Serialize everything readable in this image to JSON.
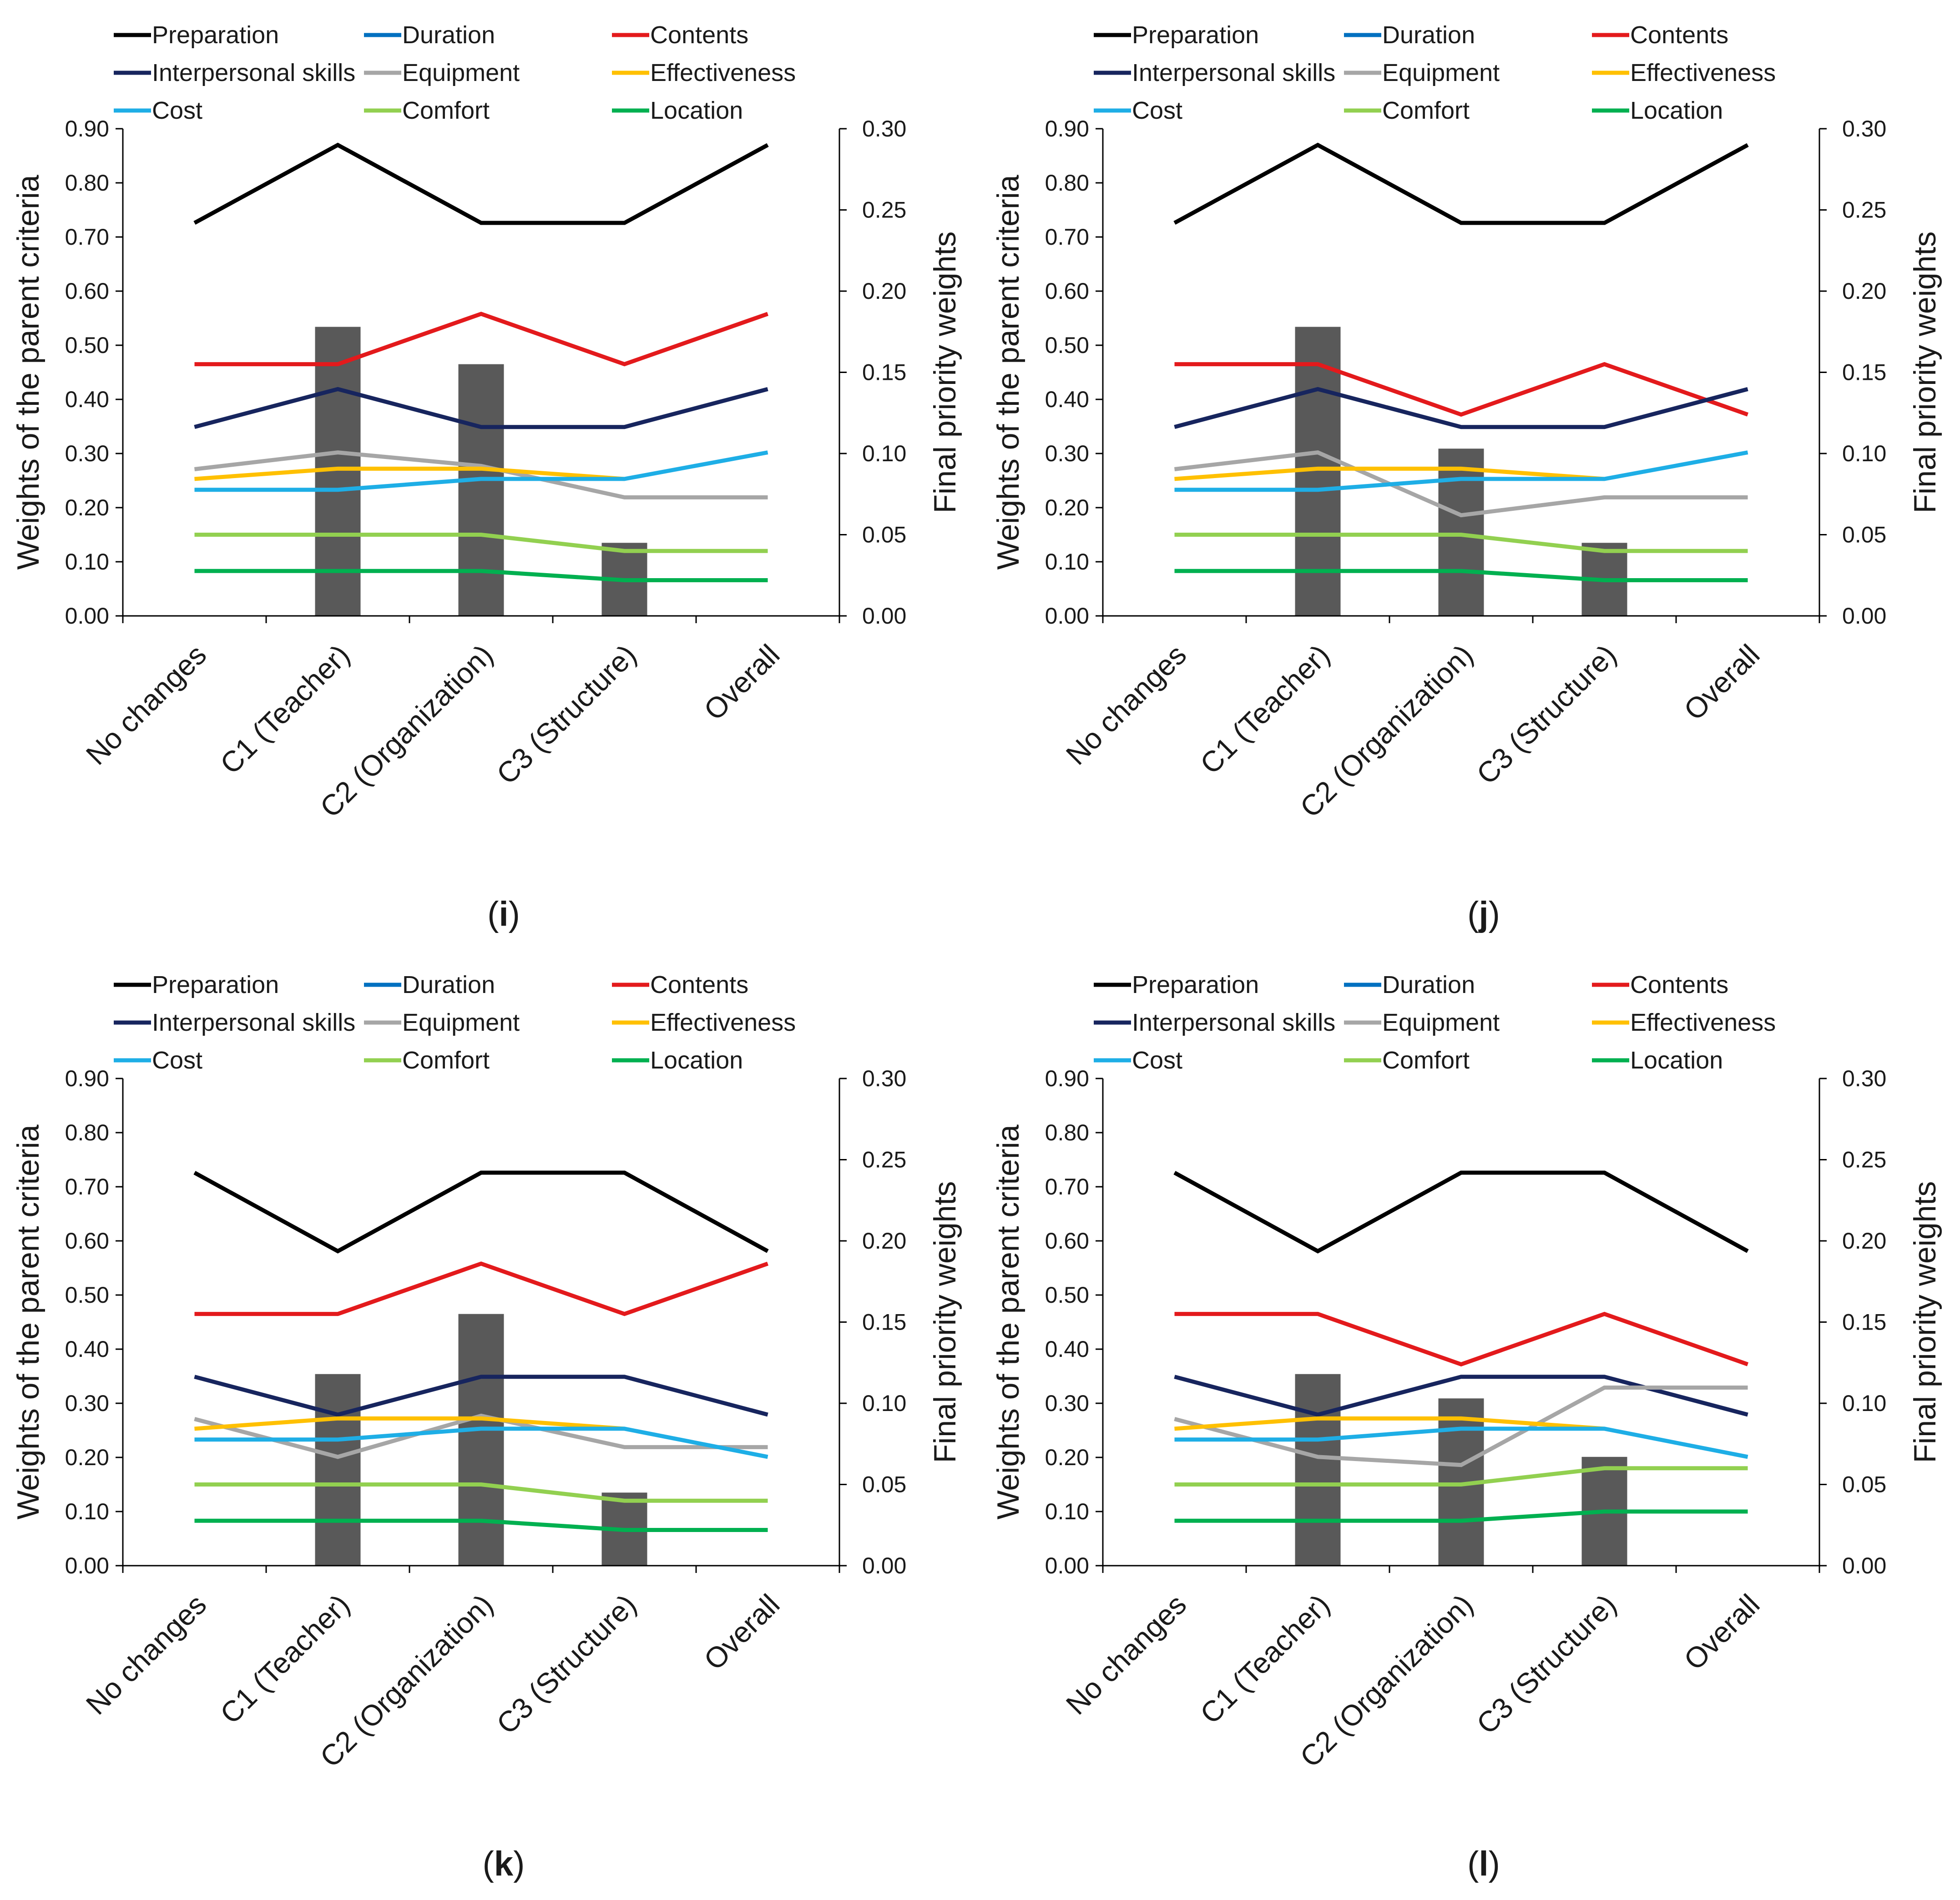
{
  "chart_data": [
    {
      "type": "line",
      "panel_label": "i",
      "categories": [
        "No changes",
        "C1 (Teacher)",
        "C2 (Organization)",
        "C3 (Structure)",
        "Overall"
      ],
      "ylabel": "Weights of the parent criteria",
      "y2label": "Final priority weights",
      "ylim": [
        0,
        0.9
      ],
      "y2lim": [
        0,
        0.3
      ],
      "yticks": [
        "0.00",
        "0.10",
        "0.20",
        "0.30",
        "0.40",
        "0.50",
        "0.60",
        "0.70",
        "0.80",
        "0.90"
      ],
      "y2ticks": [
        "0.00",
        "0.05",
        "0.10",
        "0.15",
        "0.20",
        "0.25",
        "0.30"
      ],
      "legend_position": "top",
      "bars": {
        "axis": "secondary",
        "categories": [
          "C1 (Teacher)",
          "C2 (Organization)",
          "C3 (Structure)"
        ],
        "values": [
          0.178,
          0.155,
          0.045
        ],
        "color": "#595959"
      },
      "series": [
        {
          "name": "Preparation",
          "color": "#000000",
          "values": [
            0.726,
            0.87,
            0.726,
            0.726,
            0.87
          ]
        },
        {
          "name": "Duration",
          "color": "#0070c0",
          "values": [
            null,
            null,
            null,
            null,
            null
          ]
        },
        {
          "name": "Contents",
          "color": "#e31a1c",
          "values": [
            0.465,
            0.465,
            0.558,
            0.465,
            0.558
          ]
        },
        {
          "name": "Interpersonal skills",
          "color": "#17255e",
          "values": [
            0.349,
            0.419,
            0.349,
            0.349,
            0.419
          ]
        },
        {
          "name": "Equipment",
          "color": "#a6a6a6",
          "values": [
            0.271,
            0.302,
            0.277,
            0.219,
            0.219
          ]
        },
        {
          "name": "Effectiveness",
          "color": "#ffc000",
          "values": [
            0.253,
            0.272,
            0.272,
            0.253,
            null
          ]
        },
        {
          "name": "Cost",
          "color": "#1eaee6",
          "values": [
            0.233,
            0.233,
            0.253,
            0.253,
            0.302
          ]
        },
        {
          "name": "Comfort",
          "color": "#92d050",
          "values": [
            0.15,
            0.15,
            0.15,
            0.12,
            0.12
          ]
        },
        {
          "name": "Location",
          "color": "#00b050",
          "values": [
            0.083,
            0.083,
            0.083,
            0.066,
            0.066
          ]
        }
      ]
    },
    {
      "type": "line",
      "panel_label": "j",
      "categories": [
        "No changes",
        "C1 (Teacher)",
        "C2 (Organization)",
        "C3 (Structure)",
        "Overall"
      ],
      "ylabel": "Weights of the parent criteria",
      "y2label": "Final priority weights",
      "ylim": [
        0,
        0.9
      ],
      "y2lim": [
        0,
        0.3
      ],
      "yticks": [
        "0.00",
        "0.10",
        "0.20",
        "0.30",
        "0.40",
        "0.50",
        "0.60",
        "0.70",
        "0.80",
        "0.90"
      ],
      "y2ticks": [
        "0.00",
        "0.05",
        "0.10",
        "0.15",
        "0.20",
        "0.25",
        "0.30"
      ],
      "legend_position": "top",
      "bars": {
        "axis": "secondary",
        "categories": [
          "C1 (Teacher)",
          "C2 (Organization)",
          "C3 (Structure)"
        ],
        "values": [
          0.178,
          0.103,
          0.045
        ],
        "color": "#595959"
      },
      "series": [
        {
          "name": "Preparation",
          "color": "#000000",
          "values": [
            0.726,
            0.87,
            0.726,
            0.726,
            0.87
          ]
        },
        {
          "name": "Duration",
          "color": "#0070c0",
          "values": [
            null,
            null,
            null,
            null,
            null
          ]
        },
        {
          "name": "Contents",
          "color": "#e31a1c",
          "values": [
            0.465,
            0.465,
            0.372,
            0.465,
            0.372
          ]
        },
        {
          "name": "Interpersonal skills",
          "color": "#17255e",
          "values": [
            0.349,
            0.419,
            0.349,
            0.349,
            0.419
          ]
        },
        {
          "name": "Equipment",
          "color": "#a6a6a6",
          "values": [
            0.271,
            0.302,
            0.186,
            0.219,
            0.219
          ]
        },
        {
          "name": "Effectiveness",
          "color": "#ffc000",
          "values": [
            0.253,
            0.272,
            0.272,
            0.253,
            null
          ]
        },
        {
          "name": "Cost",
          "color": "#1eaee6",
          "values": [
            0.233,
            0.233,
            0.253,
            0.253,
            0.302
          ]
        },
        {
          "name": "Comfort",
          "color": "#92d050",
          "values": [
            0.15,
            0.15,
            0.15,
            0.12,
            0.12
          ]
        },
        {
          "name": "Location",
          "color": "#00b050",
          "values": [
            0.083,
            0.083,
            0.083,
            0.066,
            0.066
          ]
        }
      ]
    },
    {
      "type": "line",
      "panel_label": "k",
      "categories": [
        "No changes",
        "C1 (Teacher)",
        "C2 (Organization)",
        "C3 (Structure)",
        "Overall"
      ],
      "ylabel": "Weights of the parent criteria",
      "y2label": "Final priority weights",
      "ylim": [
        0,
        0.9
      ],
      "y2lim": [
        0,
        0.3
      ],
      "yticks": [
        "0.00",
        "0.10",
        "0.20",
        "0.30",
        "0.40",
        "0.50",
        "0.60",
        "0.70",
        "0.80",
        "0.90"
      ],
      "y2ticks": [
        "0.00",
        "0.05",
        "0.10",
        "0.15",
        "0.20",
        "0.25",
        "0.30"
      ],
      "legend_position": "top",
      "bars": {
        "axis": "secondary",
        "categories": [
          "C1 (Teacher)",
          "C2 (Organization)",
          "C3 (Structure)"
        ],
        "values": [
          0.118,
          0.155,
          0.045
        ],
        "color": "#595959"
      },
      "series": [
        {
          "name": "Preparation",
          "color": "#000000",
          "values": [
            0.726,
            0.581,
            0.726,
            0.726,
            0.581
          ]
        },
        {
          "name": "Duration",
          "color": "#0070c0",
          "values": [
            null,
            null,
            null,
            null,
            null
          ]
        },
        {
          "name": "Contents",
          "color": "#e31a1c",
          "values": [
            0.465,
            0.465,
            0.558,
            0.465,
            0.558
          ]
        },
        {
          "name": "Interpersonal skills",
          "color": "#17255e",
          "values": [
            0.349,
            0.279,
            0.349,
            0.349,
            0.279
          ]
        },
        {
          "name": "Equipment",
          "color": "#a6a6a6",
          "values": [
            0.271,
            0.201,
            0.277,
            0.219,
            0.219
          ]
        },
        {
          "name": "Effectiveness",
          "color": "#ffc000",
          "values": [
            0.253,
            0.272,
            0.272,
            0.253,
            null
          ]
        },
        {
          "name": "Cost",
          "color": "#1eaee6",
          "values": [
            0.233,
            0.233,
            0.253,
            0.253,
            0.201
          ]
        },
        {
          "name": "Comfort",
          "color": "#92d050",
          "values": [
            0.15,
            0.15,
            0.15,
            0.12,
            0.12
          ]
        },
        {
          "name": "Location",
          "color": "#00b050",
          "values": [
            0.083,
            0.083,
            0.083,
            0.066,
            0.066
          ]
        }
      ]
    },
    {
      "type": "line",
      "panel_label": "l",
      "categories": [
        "No changes",
        "C1 (Teacher)",
        "C2 (Organization)",
        "C3 (Structure)",
        "Overall"
      ],
      "ylabel": "Weights of the parent criteria",
      "y2label": "Final priority weights",
      "ylim": [
        0,
        0.9
      ],
      "y2lim": [
        0,
        0.3
      ],
      "yticks": [
        "0.00",
        "0.10",
        "0.20",
        "0.30",
        "0.40",
        "0.50",
        "0.60",
        "0.70",
        "0.80",
        "0.90"
      ],
      "y2ticks": [
        "0.00",
        "0.05",
        "0.10",
        "0.15",
        "0.20",
        "0.25",
        "0.30"
      ],
      "legend_position": "top",
      "bars": {
        "axis": "secondary",
        "categories": [
          "C1 (Teacher)",
          "C2 (Organization)",
          "C3 (Structure)"
        ],
        "values": [
          0.118,
          0.103,
          0.067
        ],
        "color": "#595959"
      },
      "series": [
        {
          "name": "Preparation",
          "color": "#000000",
          "values": [
            0.726,
            0.581,
            0.726,
            0.726,
            0.581
          ]
        },
        {
          "name": "Duration",
          "color": "#0070c0",
          "values": [
            null,
            null,
            null,
            null,
            null
          ]
        },
        {
          "name": "Contents",
          "color": "#e31a1c",
          "values": [
            0.465,
            0.465,
            0.372,
            0.465,
            0.372
          ]
        },
        {
          "name": "Interpersonal skills",
          "color": "#17255e",
          "values": [
            0.349,
            0.279,
            0.349,
            0.349,
            0.279
          ]
        },
        {
          "name": "Equipment",
          "color": "#a6a6a6",
          "values": [
            0.271,
            0.201,
            0.186,
            0.329,
            0.329
          ]
        },
        {
          "name": "Effectiveness",
          "color": "#ffc000",
          "values": [
            0.253,
            0.272,
            0.272,
            0.253,
            null
          ]
        },
        {
          "name": "Cost",
          "color": "#1eaee6",
          "values": [
            0.233,
            0.233,
            0.253,
            0.253,
            0.201
          ]
        },
        {
          "name": "Comfort",
          "color": "#92d050",
          "values": [
            0.15,
            0.15,
            0.15,
            0.18,
            0.18
          ]
        },
        {
          "name": "Location",
          "color": "#00b050",
          "values": [
            0.083,
            0.083,
            0.083,
            0.1,
            0.1
          ]
        }
      ]
    }
  ]
}
